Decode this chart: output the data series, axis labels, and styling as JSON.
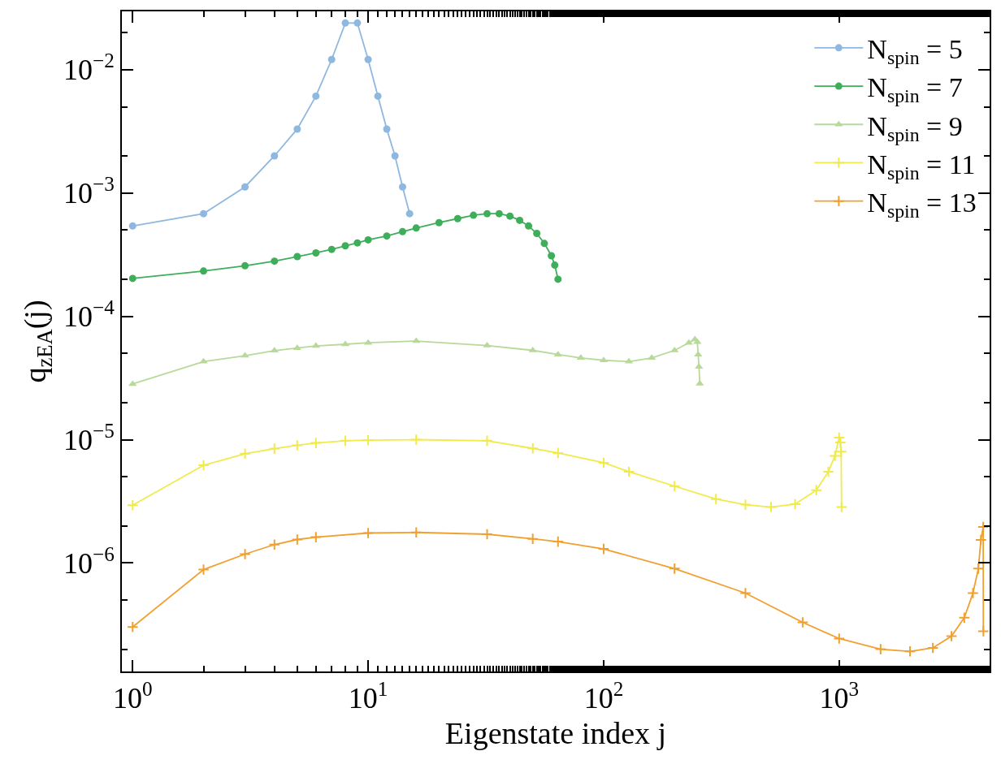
{
  "chart_data": {
    "type": "line",
    "xlabel": "Eigenstate index j",
    "ylabel": "q$_{zEA}$(j)",
    "log": "xy",
    "grid": false,
    "legend": "top right",
    "xlim": [
      0.9,
      4355
    ],
    "ylim": [
      1.32e-07,
      0.0297
    ],
    "xticks": [
      {
        "value": 1,
        "label": "10$^{0}$"
      },
      {
        "value": 10,
        "label": "10$^{1}$"
      },
      {
        "value": 100,
        "label": "10$^{2}$"
      },
      {
        "value": 1000,
        "label": "10$^{3}$"
      }
    ],
    "yticks": [
      {
        "value": 1e-06,
        "label": "10$^{−6}$"
      },
      {
        "value": 1e-05,
        "label": "10$^{−5}$"
      },
      {
        "value": 0.0001,
        "label": "10$^{−4}$"
      },
      {
        "value": 0.001,
        "label": "10$^{−3}$"
      },
      {
        "value": 0.01,
        "label": "10$^{−2}$"
      }
    ],
    "series": [
      {
        "name": "N$_{spin}$ = 5",
        "color": "#8fb8e0",
        "marker": "circle",
        "x": [
          1,
          2,
          3,
          4,
          5,
          6,
          7,
          8,
          9,
          10,
          11,
          12,
          13,
          14,
          15
        ],
        "values": [
          0.00054,
          0.00068,
          0.00112,
          0.002,
          0.0033,
          0.0061,
          0.0121,
          0.0239,
          0.0239,
          0.0121,
          0.0061,
          0.0033,
          0.002,
          0.00112,
          0.00068
        ]
      },
      {
        "name": "N$_{spin}$ = 7",
        "color": "#3fae5a",
        "marker": "circle",
        "x": [
          1,
          2,
          3,
          4,
          5,
          6,
          7,
          8,
          9,
          10,
          12,
          14,
          16,
          20,
          24,
          28,
          32,
          36,
          40,
          44,
          48,
          52,
          56,
          60,
          62,
          64
        ],
        "values": [
          0.000203,
          0.000233,
          0.000257,
          0.00028,
          0.000305,
          0.000327,
          0.000349,
          0.000373,
          0.000394,
          0.000417,
          0.000448,
          0.000486,
          0.00052,
          0.000575,
          0.00062,
          0.00066,
          0.00068,
          0.00068,
          0.00065,
          0.0006,
          0.00054,
          0.00047,
          0.00039,
          0.00031,
          0.00026,
          0.0002
        ]
      },
      {
        "name": "N$_{spin}$ = 9",
        "color": "#b8d99a",
        "marker": "triangle",
        "x": [
          1,
          2,
          3,
          4,
          5,
          6,
          8,
          10,
          16,
          32,
          50,
          64,
          80,
          100,
          128,
          160,
          200,
          230,
          244,
          250,
          252,
          254,
          256
        ],
        "values": [
          2.83e-05,
          4.3e-05,
          4.8e-05,
          5.27e-05,
          5.53e-05,
          5.75e-05,
          5.94e-05,
          6.1e-05,
          6.3e-05,
          5.8e-05,
          5.3e-05,
          4.9e-05,
          4.6e-05,
          4.4e-05,
          4.3e-05,
          4.6e-05,
          5.3e-05,
          6.1e-05,
          6.5e-05,
          6.2e-05,
          4.9e-05,
          3.9e-05,
          2.85e-05
        ]
      },
      {
        "name": "N$_{spin}$ = 11",
        "color": "#f0ea4a",
        "marker": "cross",
        "x": [
          1,
          2,
          3,
          4,
          5,
          6,
          8,
          10,
          16,
          32,
          50,
          64,
          100,
          128,
          200,
          300,
          400,
          514,
          650,
          800,
          900,
          960,
          1000,
          1012,
          1020,
          1024
        ],
        "values": [
          2.94e-06,
          6.2e-06,
          7.7e-06,
          8.45e-06,
          9e-06,
          9.4e-06,
          9.8e-06,
          9.9e-06,
          1e-05,
          9.8e-06,
          8.5e-06,
          7.8e-06,
          6.5e-06,
          5.5e-06,
          4.2e-06,
          3.3e-06,
          2.97e-06,
          2.84e-06,
          3e-06,
          3.9e-06,
          5.5e-06,
          7.4e-06,
          1.04e-05,
          9.5e-06,
          8e-06,
          2.84e-06
        ]
      },
      {
        "name": "N$_{spin}$ = 13",
        "color": "#f0a030",
        "marker": "cross",
        "x": [
          1,
          2,
          3,
          4,
          5,
          6,
          10,
          16,
          32,
          50,
          64,
          100,
          200,
          400,
          700,
          1000,
          1500,
          2000,
          2500,
          3000,
          3400,
          3700,
          3900,
          4000,
          4090,
          4096
        ],
        "values": [
          3.03e-07,
          8.85e-07,
          1.18e-06,
          1.41e-06,
          1.55e-06,
          1.62e-06,
          1.75e-06,
          1.77e-06,
          1.71e-06,
          1.57e-06,
          1.49e-06,
          1.3e-06,
          9e-07,
          5.7e-07,
          3.3e-07,
          2.44e-07,
          2e-07,
          1.92e-07,
          2.05e-07,
          2.55e-07,
          3.6e-07,
          5.7e-07,
          9e-07,
          1.54e-06,
          1.96e-06,
          2.8e-07
        ]
      }
    ]
  }
}
